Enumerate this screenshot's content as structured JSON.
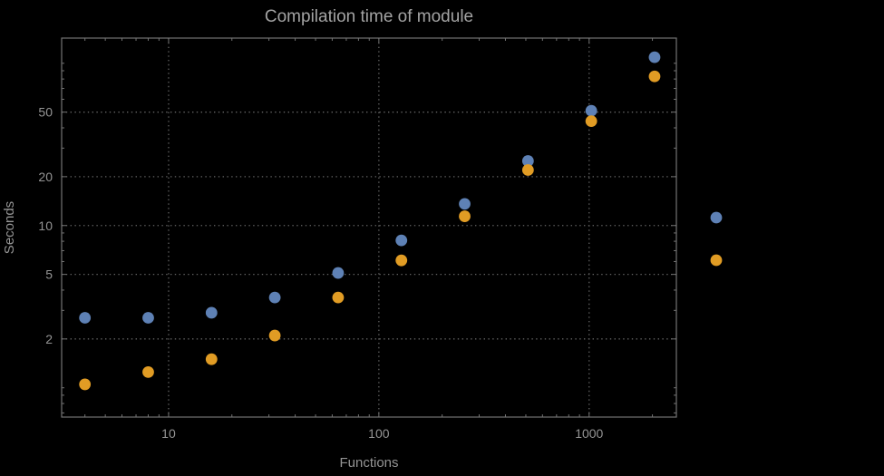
{
  "page": {
    "background": "#000000"
  },
  "chart_data": {
    "type": "scatter",
    "title": "Compilation time of module",
    "xlabel": "Functions",
    "ylabel": "Seconds",
    "xscale": "log",
    "yscale": "log",
    "grid": true,
    "grid_style": "dotted",
    "xlim": [
      3.1,
      2600
    ],
    "ylim": [
      0.66,
      143
    ],
    "x_ticks": [
      10,
      100,
      1000
    ],
    "y_ticks": [
      2,
      5,
      10,
      20,
      50
    ],
    "colors": {
      "series_blue": "#5e81b5",
      "series_orange": "#e19c24",
      "text": "#949494",
      "title_text": "#a3a3a3",
      "grid": "#636363",
      "frame": "#737373",
      "background": "#000000"
    },
    "series": [
      {
        "name": "series-1-blue",
        "color": "#5e81b5",
        "x": [
          4,
          8,
          16,
          32,
          64,
          128,
          256,
          512,
          1024,
          2048
        ],
        "y": [
          2.7,
          2.7,
          2.9,
          3.6,
          5.1,
          8.1,
          13.6,
          25,
          51,
          109
        ]
      },
      {
        "name": "series-2-orange",
        "color": "#e19c24",
        "x": [
          4,
          8,
          16,
          32,
          64,
          128,
          256,
          512,
          1024,
          2048
        ],
        "y": [
          1.05,
          1.25,
          1.5,
          2.1,
          3.6,
          6.1,
          11.4,
          22,
          44,
          83
        ]
      }
    ],
    "legend": {
      "position": "right-of-frame",
      "labels_visible": false,
      "markers": [
        {
          "color": "#5e81b5"
        },
        {
          "color": "#e19c24"
        }
      ]
    }
  }
}
